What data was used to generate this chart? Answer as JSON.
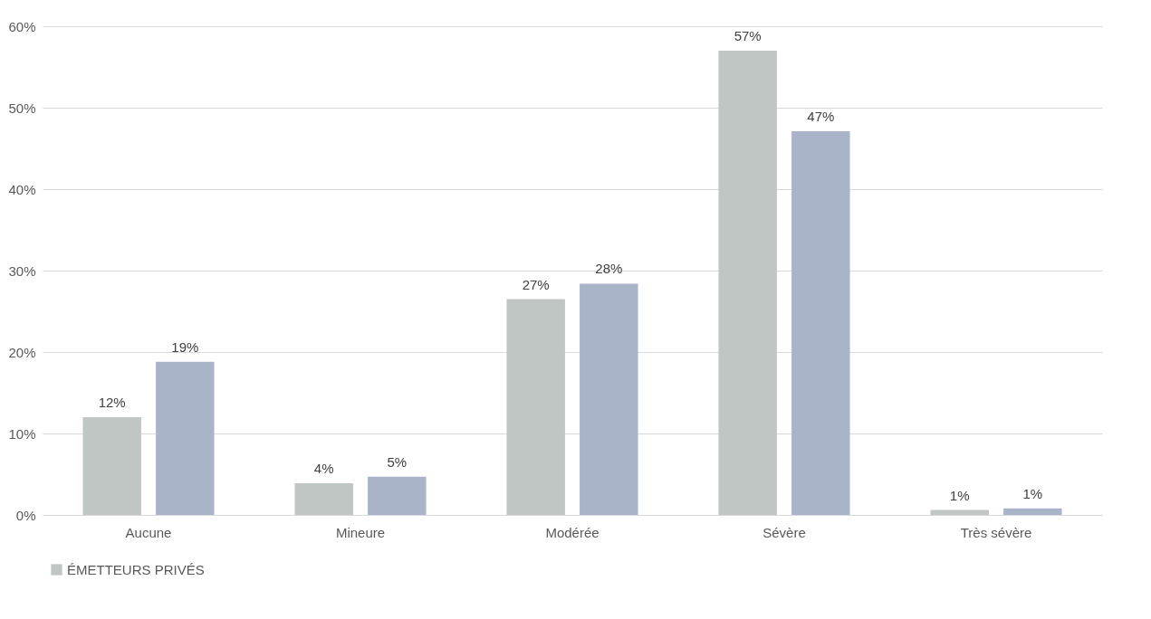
{
  "chart_data": {
    "type": "bar",
    "categories": [
      "Aucune",
      "Mineure",
      "Modérée",
      "Sévère",
      "Très sévère"
    ],
    "series": [
      {
        "name": "ÉMETTEURS PRIVÉS",
        "color": "#c0c6c3",
        "values": [
          12,
          3.9,
          26.5,
          57,
          0.6
        ],
        "value_labels": [
          "12%",
          "4%",
          "27%",
          "57%",
          "1%"
        ]
      },
      {
        "color": "#aab4c9",
        "values": [
          18.8,
          4.7,
          28.4,
          47.1,
          0.8
        ],
        "value_labels": [
          "19%",
          "5%",
          "28%",
          "47%",
          "1%"
        ]
      }
    ],
    "ylim": [
      0,
      60
    ],
    "yticks": [
      {
        "value": 0,
        "label": "0%"
      },
      {
        "value": 10,
        "label": "10%"
      },
      {
        "value": 20,
        "label": "20%"
      },
      {
        "value": 30,
        "label": "30%"
      },
      {
        "value": 40,
        "label": "40%"
      },
      {
        "value": 50,
        "label": "50%"
      },
      {
        "value": 60,
        "label": "60%"
      }
    ],
    "grid": "y",
    "legend": "bottom"
  }
}
